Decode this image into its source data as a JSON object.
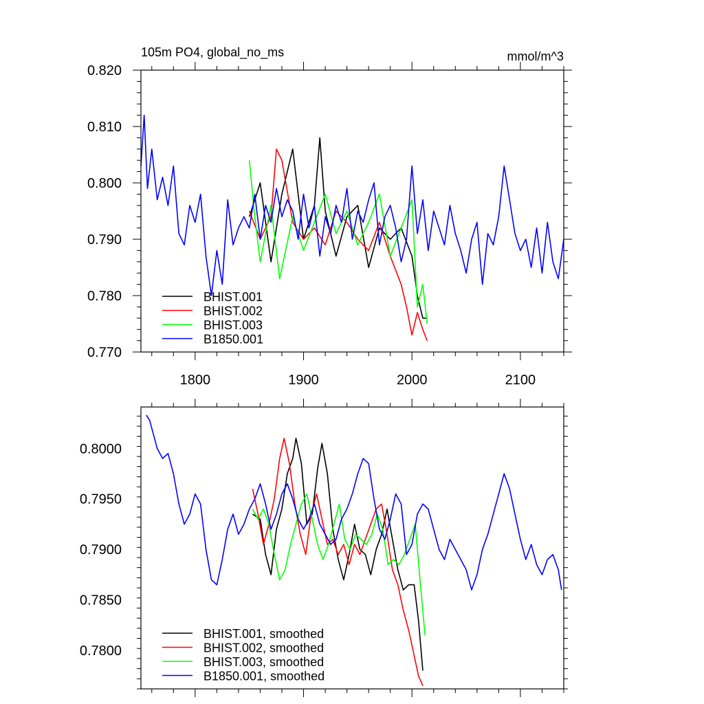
{
  "chart_data": [
    {
      "type": "line",
      "title_left": "105m PO4, global_no_ms",
      "title_right": "mmol/m^3",
      "xlim": [
        1750,
        2140
      ],
      "ylim": [
        0.77,
        0.82
      ],
      "xticks": [
        1800,
        1900,
        2000,
        2100
      ],
      "xtick_labels": [
        "1800",
        "1900",
        "2000",
        "2100"
      ],
      "yticks": [
        0.77,
        0.78,
        0.79,
        0.8,
        0.81,
        0.82
      ],
      "ytick_labels": [
        "0.770",
        "0.780",
        "0.790",
        "0.800",
        "0.810",
        "0.820"
      ],
      "legend_position": "bottom-left",
      "series": [
        {
          "name": "BHIST.001",
          "color": "#000000",
          "x": [
            1850,
            1860,
            1870,
            1880,
            1890,
            1900,
            1910,
            1915,
            1920,
            1930,
            1940,
            1950,
            1960,
            1970,
            1980,
            1990,
            2000,
            2005,
            2010,
            2014
          ],
          "y": [
            0.794,
            0.8,
            0.786,
            0.798,
            0.806,
            0.79,
            0.796,
            0.808,
            0.795,
            0.787,
            0.794,
            0.796,
            0.785,
            0.792,
            0.79,
            0.792,
            0.787,
            0.78,
            0.776,
            0.776
          ]
        },
        {
          "name": "BHIST.002",
          "color": "#ff0000",
          "x": [
            1850,
            1860,
            1870,
            1875,
            1880,
            1890,
            1900,
            1910,
            1920,
            1930,
            1940,
            1950,
            1960,
            1970,
            1980,
            1990,
            1995,
            2000,
            2005,
            2010,
            2014
          ],
          "y": [
            0.795,
            0.79,
            0.794,
            0.806,
            0.804,
            0.793,
            0.79,
            0.792,
            0.789,
            0.795,
            0.793,
            0.79,
            0.788,
            0.793,
            0.787,
            0.782,
            0.778,
            0.773,
            0.777,
            0.774,
            0.772
          ]
        },
        {
          "name": "BHIST.003",
          "color": "#00ff00",
          "x": [
            1850,
            1855,
            1860,
            1870,
            1878,
            1890,
            1900,
            1910,
            1920,
            1930,
            1940,
            1950,
            1960,
            1970,
            1980,
            1990,
            2000,
            2005,
            2010,
            2014
          ],
          "y": [
            0.804,
            0.794,
            0.786,
            0.796,
            0.783,
            0.794,
            0.788,
            0.793,
            0.798,
            0.791,
            0.795,
            0.789,
            0.793,
            0.798,
            0.787,
            0.792,
            0.797,
            0.778,
            0.782,
            0.775
          ]
        },
        {
          "name": "B1850.001",
          "color": "#0000ff",
          "x": [
            1750,
            1753,
            1756,
            1760,
            1765,
            1770,
            1775,
            1780,
            1785,
            1790,
            1795,
            1800,
            1805,
            1810,
            1815,
            1820,
            1825,
            1830,
            1835,
            1840,
            1845,
            1850,
            1855,
            1860,
            1865,
            1870,
            1875,
            1880,
            1885,
            1890,
            1895,
            1900,
            1905,
            1910,
            1915,
            1920,
            1925,
            1930,
            1935,
            1940,
            1945,
            1950,
            1955,
            1960,
            1965,
            1970,
            1975,
            1980,
            1985,
            1990,
            1995,
            2000,
            2005,
            2010,
            2015,
            2020,
            2025,
            2030,
            2035,
            2040,
            2045,
            2050,
            2055,
            2060,
            2065,
            2070,
            2075,
            2080,
            2085,
            2090,
            2095,
            2100,
            2105,
            2110,
            2115,
            2120,
            2125,
            2130,
            2135,
            2140
          ],
          "y": [
            0.803,
            0.812,
            0.799,
            0.806,
            0.797,
            0.801,
            0.796,
            0.803,
            0.791,
            0.789,
            0.796,
            0.793,
            0.798,
            0.787,
            0.78,
            0.788,
            0.782,
            0.797,
            0.789,
            0.792,
            0.794,
            0.792,
            0.798,
            0.79,
            0.796,
            0.793,
            0.799,
            0.794,
            0.797,
            0.795,
            0.79,
            0.798,
            0.792,
            0.796,
            0.787,
            0.794,
            0.791,
            0.796,
            0.793,
            0.799,
            0.79,
            0.795,
            0.793,
            0.797,
            0.8,
            0.789,
            0.794,
            0.796,
            0.792,
            0.786,
            0.79,
            0.803,
            0.791,
            0.797,
            0.788,
            0.795,
            0.792,
            0.789,
            0.796,
            0.791,
            0.788,
            0.784,
            0.79,
            0.793,
            0.782,
            0.791,
            0.789,
            0.794,
            0.803,
            0.797,
            0.791,
            0.788,
            0.79,
            0.785,
            0.792,
            0.784,
            0.793,
            0.786,
            0.783,
            0.79
          ]
        }
      ]
    },
    {
      "type": "line",
      "xlim": [
        1750,
        2140
      ],
      "ylim": [
        0.7762,
        0.8041
      ],
      "xticks": [
        1800,
        1900,
        2000,
        2100
      ],
      "yticks": [
        0.78,
        0.785,
        0.79,
        0.795,
        0.8
      ],
      "ytick_labels": [
        "0.7800",
        "0.7850",
        "0.7900",
        "0.7950",
        "0.8000"
      ],
      "legend_position": "bottom-left",
      "series": [
        {
          "name": "BHIST.001, smoothed",
          "color": "#000000",
          "x": [
            1853,
            1860,
            1865,
            1870,
            1875,
            1880,
            1885,
            1890,
            1893,
            1898,
            1903,
            1908,
            1913,
            1917,
            1922,
            1927,
            1932,
            1937,
            1942,
            1947,
            1952,
            1957,
            1962,
            1967,
            1972,
            1977,
            1982,
            1987,
            1992,
            1997,
            2002,
            2006,
            2010
          ],
          "y": [
            0.7935,
            0.793,
            0.7895,
            0.7875,
            0.792,
            0.794,
            0.7975,
            0.799,
            0.801,
            0.7985,
            0.7925,
            0.7935,
            0.798,
            0.8005,
            0.7975,
            0.792,
            0.789,
            0.787,
            0.7895,
            0.7925,
            0.79,
            0.7895,
            0.7875,
            0.79,
            0.7915,
            0.794,
            0.791,
            0.788,
            0.786,
            0.7865,
            0.7865,
            0.783,
            0.778
          ]
        },
        {
          "name": "BHIST.002, smoothed",
          "color": "#ff0000",
          "x": [
            1853,
            1858,
            1863,
            1868,
            1873,
            1878,
            1882,
            1887,
            1892,
            1897,
            1902,
            1907,
            1912,
            1917,
            1922,
            1927,
            1932,
            1937,
            1942,
            1947,
            1952,
            1957,
            1962,
            1967,
            1972,
            1977,
            1982,
            1987,
            1992,
            1997,
            2002,
            2006,
            2010
          ],
          "y": [
            0.796,
            0.7935,
            0.7905,
            0.7925,
            0.795,
            0.799,
            0.801,
            0.7985,
            0.7945,
            0.7915,
            0.7895,
            0.7935,
            0.7955,
            0.793,
            0.7905,
            0.791,
            0.7895,
            0.7905,
            0.7885,
            0.7905,
            0.7895,
            0.791,
            0.7925,
            0.794,
            0.7945,
            0.7915,
            0.788,
            0.7865,
            0.784,
            0.782,
            0.7795,
            0.7775,
            0.7765
          ]
        },
        {
          "name": "BHIST.003, smoothed",
          "color": "#00ff00",
          "x": [
            1853,
            1858,
            1863,
            1868,
            1873,
            1878,
            1883,
            1888,
            1893,
            1898,
            1903,
            1908,
            1913,
            1918,
            1923,
            1928,
            1933,
            1938,
            1943,
            1948,
            1953,
            1958,
            1963,
            1968,
            1973,
            1978,
            1983,
            1988,
            1993,
            1998,
            2003,
            2007,
            2012
          ],
          "y": [
            0.794,
            0.793,
            0.794,
            0.7925,
            0.7895,
            0.787,
            0.788,
            0.7905,
            0.7925,
            0.7945,
            0.7955,
            0.793,
            0.7905,
            0.789,
            0.7905,
            0.7925,
            0.7945,
            0.791,
            0.79,
            0.7915,
            0.791,
            0.7905,
            0.7915,
            0.7935,
            0.792,
            0.7885,
            0.789,
            0.7885,
            0.7895,
            0.791,
            0.7925,
            0.7875,
            0.7815
          ]
        },
        {
          "name": "B1850.001, smoothed",
          "color": "#0000ff",
          "x": [
            1755,
            1758,
            1762,
            1765,
            1770,
            1775,
            1780,
            1785,
            1790,
            1795,
            1800,
            1805,
            1810,
            1815,
            1820,
            1825,
            1830,
            1835,
            1840,
            1845,
            1850,
            1855,
            1860,
            1865,
            1870,
            1875,
            1880,
            1885,
            1890,
            1895,
            1900,
            1905,
            1910,
            1915,
            1920,
            1925,
            1930,
            1935,
            1940,
            1945,
            1950,
            1955,
            1960,
            1965,
            1970,
            1975,
            1980,
            1985,
            1990,
            1995,
            2000,
            2005,
            2010,
            2015,
            2020,
            2025,
            2030,
            2035,
            2040,
            2045,
            2050,
            2055,
            2060,
            2065,
            2070,
            2075,
            2080,
            2085,
            2090,
            2095,
            2100,
            2105,
            2110,
            2115,
            2120,
            2125,
            2130,
            2135,
            2138
          ],
          "y": [
            0.8033,
            0.8028,
            0.8012,
            0.8,
            0.799,
            0.7995,
            0.7975,
            0.7945,
            0.7925,
            0.7935,
            0.7955,
            0.7945,
            0.79,
            0.787,
            0.7865,
            0.789,
            0.792,
            0.7935,
            0.7915,
            0.7925,
            0.794,
            0.795,
            0.7965,
            0.7945,
            0.792,
            0.7935,
            0.7955,
            0.7965,
            0.795,
            0.793,
            0.792,
            0.793,
            0.7945,
            0.7925,
            0.7915,
            0.7905,
            0.791,
            0.793,
            0.794,
            0.7955,
            0.7975,
            0.799,
            0.7985,
            0.795,
            0.792,
            0.791,
            0.793,
            0.7955,
            0.7945,
            0.7895,
            0.7905,
            0.7935,
            0.7945,
            0.794,
            0.792,
            0.79,
            0.789,
            0.791,
            0.79,
            0.789,
            0.788,
            0.786,
            0.7875,
            0.79,
            0.7915,
            0.7935,
            0.7955,
            0.7975,
            0.796,
            0.7935,
            0.791,
            0.789,
            0.7905,
            0.7885,
            0.7875,
            0.789,
            0.7895,
            0.788,
            0.786
          ]
        }
      ]
    }
  ]
}
